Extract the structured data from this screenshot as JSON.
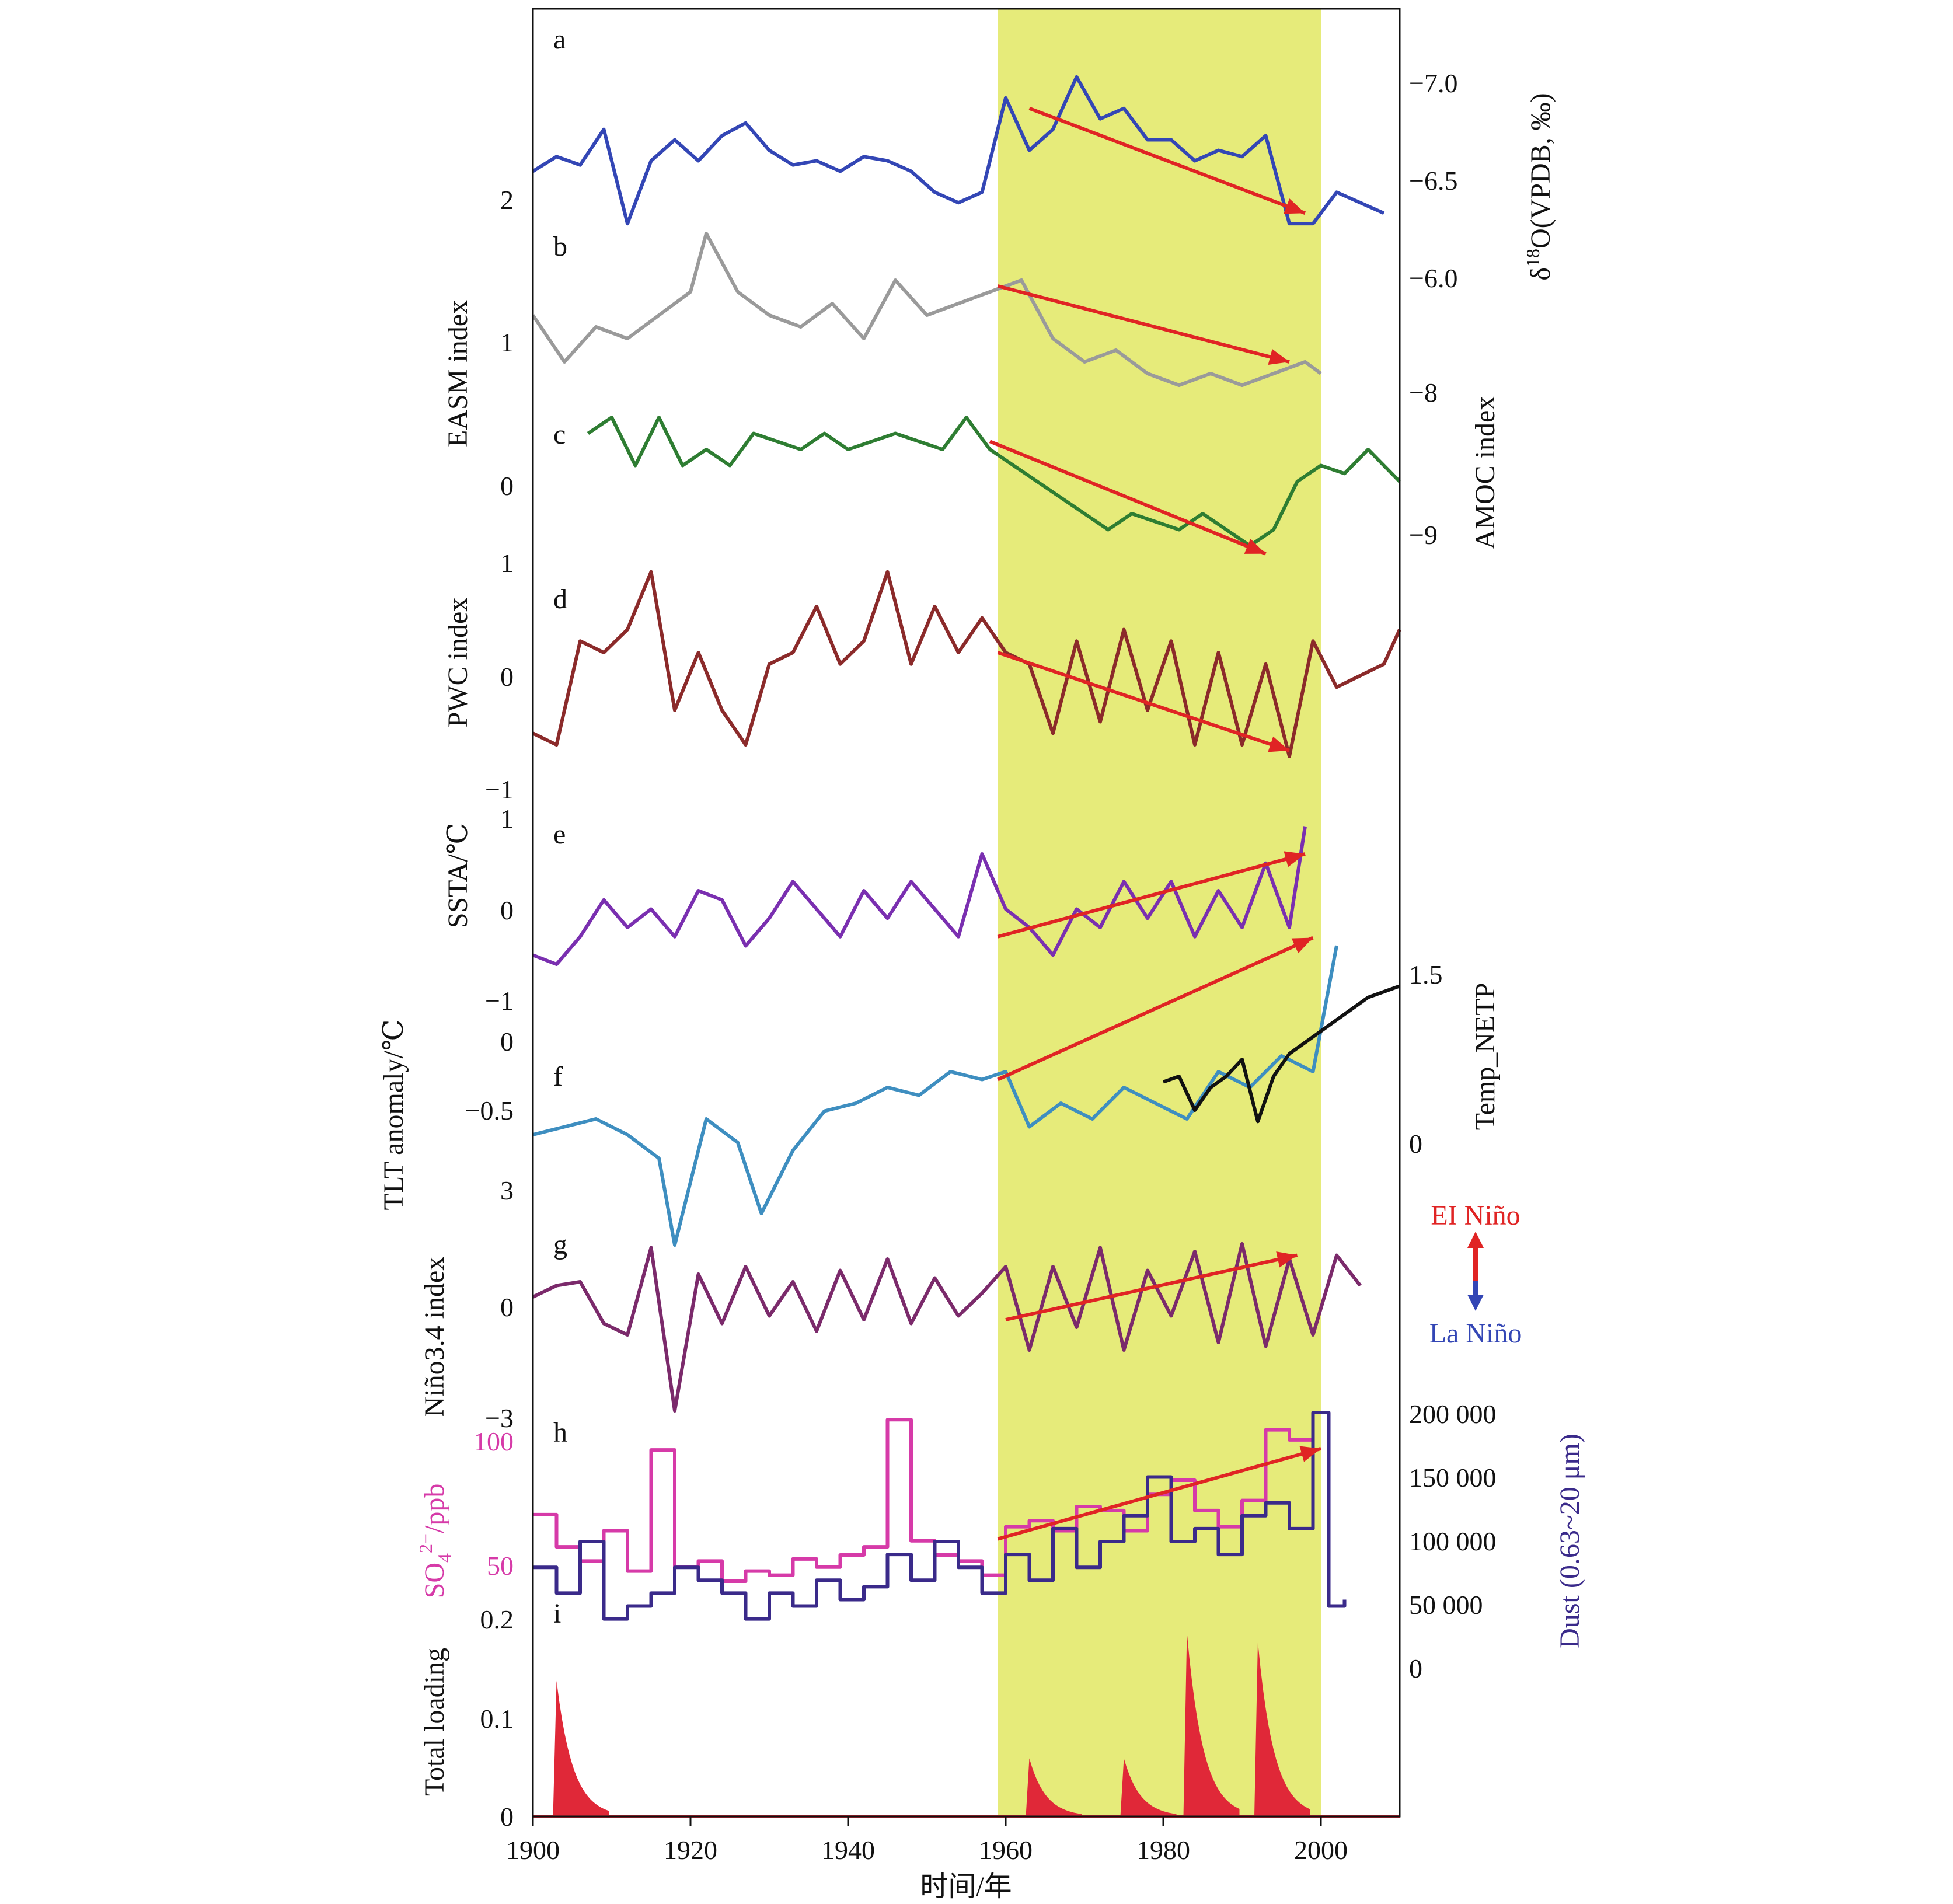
{
  "chart_data": [
    {
      "panel": "a",
      "type": "line",
      "right_axis": {
        "label": "δ18O(VPDB, ‰)",
        "ticks": [
          "−7.0",
          "−6.5",
          "−6.0"
        ]
      },
      "left_ticks": [
        "2"
      ],
      "color": "#3346b5",
      "x": [
        1900,
        1903,
        1906,
        1909,
        1912,
        1915,
        1918,
        1921,
        1924,
        1927,
        1930,
        1933,
        1936,
        1939,
        1942,
        1945,
        1948,
        1951,
        1954,
        1957,
        1960,
        1963,
        1966,
        1969,
        1972,
        1975,
        1978,
        1981,
        1984,
        1987,
        1990,
        1993,
        1996,
        1999,
        2002,
        2005,
        2008
      ],
      "values": [
        -6.55,
        -6.62,
        -6.58,
        -6.75,
        -6.3,
        -6.6,
        -6.7,
        -6.6,
        -6.72,
        -6.78,
        -6.65,
        -6.58,
        -6.6,
        -6.55,
        -6.62,
        -6.6,
        -6.55,
        -6.45,
        -6.4,
        -6.45,
        -6.9,
        -6.65,
        -6.75,
        -7.0,
        -6.8,
        -6.85,
        -6.7,
        -6.7,
        -6.6,
        -6.65,
        -6.62,
        -6.72,
        -6.3,
        -6.3,
        -6.45,
        -6.4,
        -6.35
      ],
      "trend": {
        "x": [
          1963,
          1998
        ],
        "y": [
          -6.85,
          -6.35
        ]
      },
      "trend_color": "#e02424"
    },
    {
      "panel": "b",
      "type": "line",
      "left_label": "EASM index",
      "left_ticks": [
        "1"
      ],
      "color": "#9a9a9a",
      "x": [
        1900,
        1904,
        1908,
        1912,
        1916,
        1920,
        1922,
        1926,
        1930,
        1934,
        1938,
        1942,
        1946,
        1950,
        1954,
        1958,
        1962,
        1966,
        1970,
        1974,
        1978,
        1982,
        1986,
        1990,
        1994,
        1998,
        2000
      ],
      "values": [
        1.2,
        0.8,
        1.1,
        1.0,
        1.2,
        1.4,
        1.9,
        1.4,
        1.2,
        1.1,
        1.3,
        1.0,
        1.5,
        1.2,
        1.3,
        1.4,
        1.5,
        1.0,
        0.8,
        0.9,
        0.7,
        0.6,
        0.7,
        0.6,
        0.7,
        0.8,
        0.7
      ],
      "trend": {
        "x": [
          1959,
          1996
        ],
        "y": [
          1.45,
          0.8
        ]
      },
      "trend_color": "#e02424"
    },
    {
      "panel": "c",
      "type": "line",
      "right_axis": {
        "label": "AMOC index",
        "ticks": [
          "−8",
          "−9"
        ]
      },
      "left_ticks": [
        "0"
      ],
      "color": "#2e7d32",
      "x": [
        1907,
        1910,
        1913,
        1916,
        1919,
        1922,
        1925,
        1928,
        1931,
        1934,
        1937,
        1940,
        1943,
        1946,
        1949,
        1952,
        1955,
        1958,
        1961,
        1964,
        1967,
        1970,
        1973,
        1976,
        1979,
        1982,
        1985,
        1988,
        1991,
        1994,
        1997,
        2000,
        2003,
        2006,
        2010
      ],
      "values": [
        -8.3,
        -8.2,
        -8.5,
        -8.2,
        -8.5,
        -8.4,
        -8.5,
        -8.3,
        -8.35,
        -8.4,
        -8.3,
        -8.4,
        -8.35,
        -8.3,
        -8.35,
        -8.4,
        -8.2,
        -8.4,
        -8.5,
        -8.6,
        -8.7,
        -8.8,
        -8.9,
        -8.8,
        -8.85,
        -8.9,
        -8.8,
        -8.9,
        -9.0,
        -8.9,
        -8.6,
        -8.5,
        -8.55,
        -8.4,
        -8.6
      ],
      "trend": {
        "x": [
          1958,
          1993
        ],
        "y": [
          -8.35,
          -9.05
        ]
      },
      "trend_color": "#e02424"
    },
    {
      "panel": "d",
      "type": "line",
      "left_label": "PWC index",
      "left_ticks": [
        "1",
        "0",
        "−1"
      ],
      "color": "#8b2a2a",
      "x": [
        1900,
        1903,
        1906,
        1909,
        1912,
        1915,
        1918,
        1921,
        1924,
        1927,
        1930,
        1933,
        1936,
        1939,
        1942,
        1945,
        1948,
        1951,
        1954,
        1957,
        1960,
        1963,
        1966,
        1969,
        1972,
        1975,
        1978,
        1981,
        1984,
        1987,
        1990,
        1993,
        1996,
        1999,
        2002,
        2005,
        2008,
        2010
      ],
      "values": [
        -0.5,
        -0.6,
        0.3,
        0.2,
        0.4,
        0.9,
        -0.3,
        0.2,
        -0.3,
        -0.6,
        0.1,
        0.2,
        0.6,
        0.1,
        0.3,
        0.9,
        0.1,
        0.6,
        0.2,
        0.5,
        0.2,
        0.1,
        -0.5,
        0.3,
        -0.4,
        0.4,
        -0.3,
        0.3,
        -0.6,
        0.2,
        -0.6,
        0.1,
        -0.7,
        0.3,
        -0.1,
        0.0,
        0.1,
        0.4
      ],
      "trend": {
        "x": [
          1959,
          1996
        ],
        "y": [
          0.2,
          -0.65
        ]
      },
      "trend_color": "#e02424"
    },
    {
      "panel": "e",
      "type": "line",
      "left_label": "SSTA/℃",
      "left_ticks": [
        "1",
        "0",
        "−1"
      ],
      "color": "#7a2fb0",
      "x": [
        1900,
        1903,
        1906,
        1909,
        1912,
        1915,
        1918,
        1921,
        1924,
        1927,
        1930,
        1933,
        1936,
        1939,
        1942,
        1945,
        1948,
        1951,
        1954,
        1957,
        1960,
        1963,
        1966,
        1969,
        1972,
        1975,
        1978,
        1981,
        1984,
        1987,
        1990,
        1993,
        1996,
        1998
      ],
      "values": [
        -0.5,
        -0.6,
        -0.3,
        0.1,
        -0.2,
        0.0,
        -0.3,
        0.2,
        0.1,
        -0.4,
        -0.1,
        0.3,
        0.0,
        -0.3,
        0.2,
        -0.1,
        0.3,
        0.0,
        -0.3,
        0.6,
        0.0,
        -0.2,
        -0.5,
        0.0,
        -0.2,
        0.3,
        -0.1,
        0.3,
        -0.3,
        0.2,
        -0.2,
        0.5,
        -0.2,
        0.9
      ],
      "trend": {
        "x": [
          1959,
          1998
        ],
        "y": [
          -0.3,
          0.6
        ]
      },
      "trend_color": "#e02424"
    },
    {
      "panel": "f",
      "type": "line",
      "left_label": "TLT anomaly/℃",
      "left_ticks": [
        "0",
        "−0.5"
      ],
      "right_axis": {
        "label": "Temp_NETP",
        "ticks": [
          "1.5",
          "0"
        ]
      },
      "series": [
        {
          "color": "#3e8ec0",
          "x": [
            1900,
            1904,
            1908,
            1912,
            1916,
            1918,
            1922,
            1926,
            1929,
            1933,
            1937,
            1941,
            1945,
            1949,
            1953,
            1957,
            1960,
            1963,
            1967,
            1971,
            1975,
            1979,
            1983,
            1987,
            1991,
            1995,
            1999,
            2002
          ],
          "values": [
            -0.7,
            -0.65,
            -0.6,
            -0.7,
            -0.85,
            -1.4,
            -0.6,
            -0.75,
            -1.2,
            -0.8,
            -0.55,
            -0.5,
            -0.4,
            -0.45,
            -0.3,
            -0.35,
            -0.3,
            -0.65,
            -0.5,
            -0.6,
            -0.4,
            -0.5,
            -0.6,
            -0.3,
            -0.4,
            -0.2,
            -0.3,
            0.5
          ]
        },
        {
          "color": "#111111",
          "x": [
            1980,
            1982,
            1984,
            1986,
            1988,
            1990,
            1992,
            1994,
            1996,
            1998,
            2000,
            2002,
            2004,
            2006,
            2008,
            2010
          ],
          "values": [
            0.55,
            0.6,
            0.3,
            0.5,
            0.6,
            0.75,
            0.2,
            0.6,
            0.8,
            0.9,
            1.0,
            1.1,
            1.2,
            1.3,
            1.35,
            1.4
          ]
        }
      ],
      "trend": {
        "x": [
          1959,
          1999
        ],
        "y": [
          -0.35,
          0.55
        ]
      },
      "trend_color": "#e02424"
    },
    {
      "panel": "g",
      "type": "line",
      "left_label": "Niño3.4 index",
      "left_ticks": [
        "3",
        "0",
        "−3"
      ],
      "right_annotations": [
        "EI Niño",
        "La Niño"
      ],
      "color": "#7b2a6b",
      "x": [
        1900,
        1903,
        1906,
        1909,
        1912,
        1915,
        1918,
        1921,
        1924,
        1927,
        1930,
        1933,
        1936,
        1939,
        1942,
        1945,
        1948,
        1951,
        1954,
        1957,
        1960,
        1963,
        1966,
        1969,
        1972,
        1975,
        1978,
        1981,
        1984,
        1987,
        1990,
        1993,
        1996,
        1999,
        2002,
        2005
      ],
      "values": [
        0.2,
        0.5,
        0.6,
        -0.5,
        -0.8,
        1.5,
        -2.8,
        0.8,
        -0.5,
        1.0,
        -0.3,
        0.6,
        -0.7,
        0.9,
        -0.4,
        1.2,
        -0.5,
        0.7,
        -0.3,
        0.3,
        1.0,
        -1.2,
        1.0,
        -0.6,
        1.5,
        -1.2,
        0.9,
        -0.3,
        1.4,
        -1.0,
        1.6,
        -1.1,
        1.2,
        -0.8,
        1.3,
        0.5
      ],
      "trend": {
        "x": [
          1960,
          1997
        ],
        "y": [
          -0.4,
          1.3
        ]
      },
      "trend_color": "#e02424"
    },
    {
      "panel": "h",
      "type": "line",
      "left_label": "SO4 2−/ppb",
      "left_ticks": [
        "100",
        "50"
      ],
      "right_axis": {
        "label": "Dust (0.63~20 μm)",
        "ticks": [
          "200 000",
          "150 000",
          "100 000",
          "50 000",
          "0"
        ]
      },
      "series": [
        {
          "name": "SO4 2−/ppb",
          "color": "#d63aa8",
          "x": [
            1900,
            1903,
            1906,
            1909,
            1912,
            1915,
            1918,
            1921,
            1924,
            1927,
            1930,
            1933,
            1936,
            1939,
            1942,
            1945,
            1948,
            1951,
            1954,
            1957,
            1960,
            1963,
            1966,
            1969,
            1972,
            1975,
            1978,
            1981,
            1984,
            1987,
            1990,
            1993,
            1996,
            1999
          ],
          "values": [
            68,
            52,
            45,
            60,
            40,
            100,
            42,
            45,
            35,
            40,
            38,
            46,
            42,
            48,
            52,
            115,
            55,
            48,
            45,
            38,
            62,
            65,
            60,
            72,
            70,
            60,
            78,
            85,
            70,
            62,
            75,
            110,
            105,
            88
          ]
        },
        {
          "name": "Dust (0.63~20 μm)",
          "color": "#3a2a8a",
          "x": [
            1900,
            1903,
            1906,
            1909,
            1912,
            1915,
            1918,
            1921,
            1924,
            1927,
            1930,
            1933,
            1936,
            1939,
            1942,
            1945,
            1948,
            1951,
            1954,
            1957,
            1960,
            1963,
            1966,
            1969,
            1972,
            1975,
            1978,
            1981,
            1984,
            1987,
            1990,
            1993,
            1996,
            1999,
            2001,
            2003
          ],
          "values": [
            80000,
            60000,
            100000,
            40000,
            50000,
            60000,
            80000,
            70000,
            60000,
            40000,
            60000,
            50000,
            70000,
            55000,
            65000,
            90000,
            70000,
            100000,
            80000,
            60000,
            90000,
            70000,
            110000,
            80000,
            100000,
            120000,
            150000,
            100000,
            110000,
            90000,
            120000,
            130000,
            110000,
            200000,
            50000,
            55000
          ]
        }
      ],
      "trend": {
        "x": [
          1959,
          2000
        ],
        "y": [
          102000,
          172000
        ]
      },
      "trend_color": "#e02424"
    },
    {
      "panel": "i",
      "type": "area",
      "left_label": "Total loading",
      "left_ticks": [
        "0.2",
        "0.1",
        "0"
      ],
      "color": "#e02838",
      "peaks": [
        {
          "year": 1903,
          "value": 0.14
        },
        {
          "year": 1963,
          "value": 0.06
        },
        {
          "year": 1975,
          "value": 0.06
        },
        {
          "year": 1983,
          "value": 0.19
        },
        {
          "year": 1992,
          "value": 0.18
        }
      ]
    }
  ],
  "x_axis": {
    "label": "时间/年",
    "ticks": [
      "1900",
      "1920",
      "1940",
      "1960",
      "1980",
      "2000"
    ],
    "range": [
      1900,
      2010
    ]
  },
  "shaded_interval": {
    "from": 1959,
    "to": 2000,
    "color": "#e6eb7a"
  }
}
